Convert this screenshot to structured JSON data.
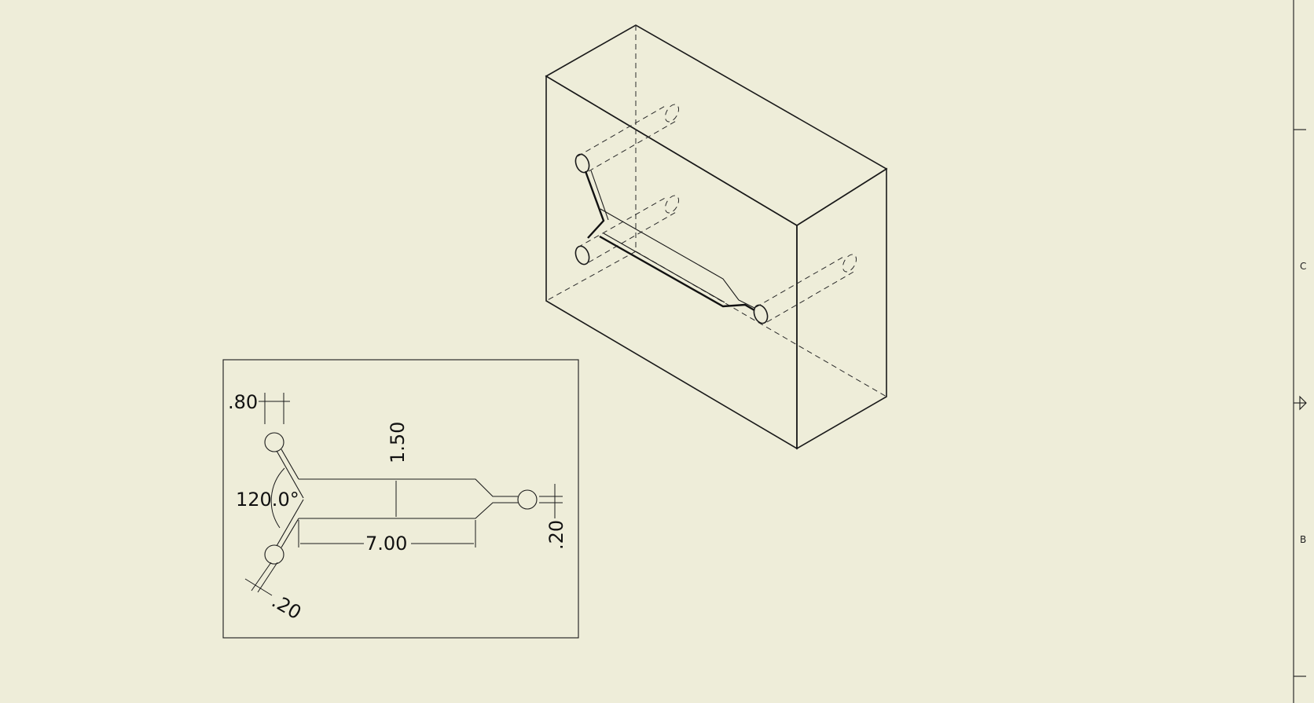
{
  "iso_view": {
    "label": "isometric view of block with microfluidic channel"
  },
  "detail_view": {
    "dimensions": {
      "port_diameter": ".80",
      "channel_height": "1.50",
      "inlet_angle": "120.0°",
      "channel_length": "7.00",
      "outlet_width": ".20",
      "inlet_width": ".20"
    }
  },
  "border": {
    "zones": [
      "C",
      "B"
    ]
  },
  "colors": {
    "sheet_background": "#eeedd9",
    "line": "#1a1a1a"
  }
}
